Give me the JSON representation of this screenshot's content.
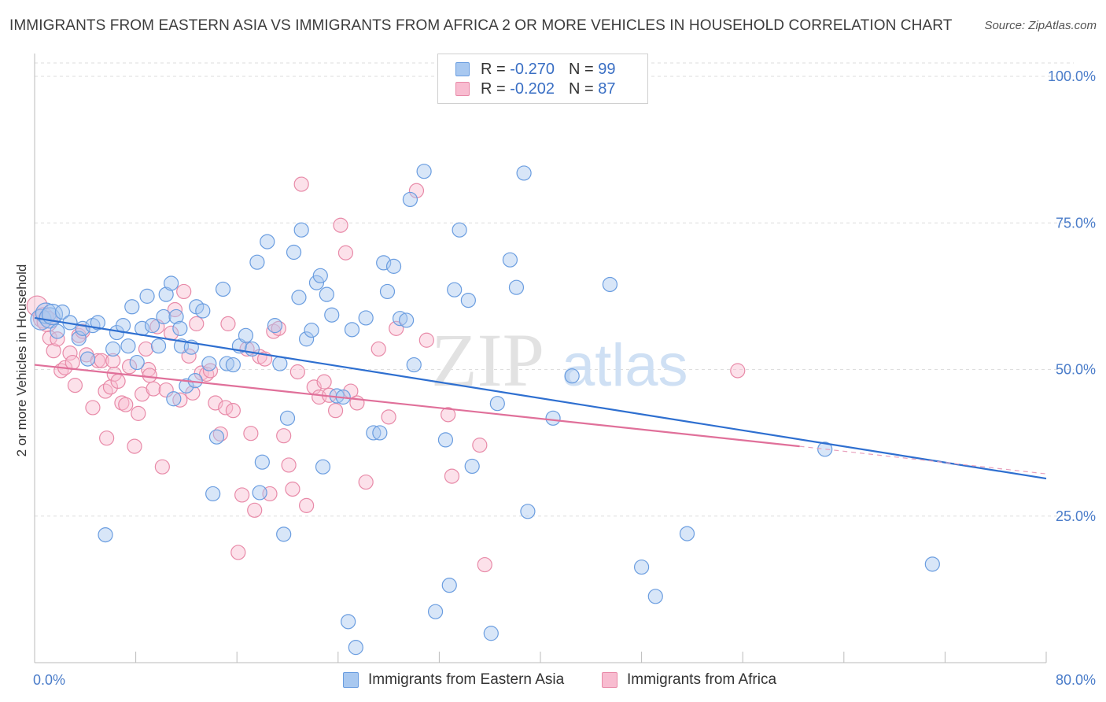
{
  "title": "IMMIGRANTS FROM EASTERN ASIA VS IMMIGRANTS FROM AFRICA 2 OR MORE VEHICLES IN HOUSEHOLD CORRELATION CHART",
  "source": "Source: ZipAtlas.com",
  "watermark": {
    "zip": "ZIP",
    "atlas": "atlas"
  },
  "legend": {
    "rows": [
      {
        "r_label": "R =",
        "r_value": "-0.270",
        "n_label": "N =",
        "n_value": "99",
        "color": "#a8c8f0",
        "border": "#6a9de0"
      },
      {
        "r_label": "R =",
        "r_value": "-0.202",
        "n_label": "N =",
        "n_value": "87",
        "color": "#f8bcd0",
        "border": "#e88aa8"
      }
    ]
  },
  "bottom_legend": [
    {
      "label": "Immigrants from Eastern Asia",
      "color": "#a8c8f0",
      "border": "#6a9de0"
    },
    {
      "label": "Immigrants from Africa",
      "color": "#f8bcd0",
      "border": "#e88aa8"
    }
  ],
  "chart_data": {
    "type": "scatter",
    "title": "IMMIGRANTS FROM EASTERN ASIA VS IMMIGRANTS FROM AFRICA 2 OR MORE VEHICLES IN HOUSEHOLD CORRELATION CHART",
    "xlabel": "",
    "ylabel": "2 or more Vehicles in Household",
    "xlim": [
      0,
      80
    ],
    "ylim": [
      0,
      102
    ],
    "x_tick_labels": [
      "0.0%",
      "80.0%"
    ],
    "y_ticks": [
      25,
      50,
      75,
      100
    ],
    "y_tick_labels": [
      "25.0%",
      "50.0%",
      "75.0%",
      "100.0%"
    ],
    "grid": true,
    "legend_position": "top-center",
    "series": [
      {
        "name": "Immigrants from Eastern Asia",
        "color": "#6a9de0",
        "fill": "#a8c8f0",
        "trend": {
          "x": [
            0,
            80
          ],
          "y": [
            58.8,
            31.4
          ]
        },
        "points": [
          [
            0.5,
            58.5
          ],
          [
            0.9,
            59.6
          ],
          [
            1.2,
            58.8
          ],
          [
            1.4,
            59.4
          ],
          [
            1.8,
            56.5
          ],
          [
            2.2,
            59.8
          ],
          [
            2.8,
            58.0
          ],
          [
            3.5,
            55.3
          ],
          [
            3.8,
            57.0
          ],
          [
            4.2,
            51.8
          ],
          [
            4.6,
            57.5
          ],
          [
            5.0,
            58.0
          ],
          [
            5.6,
            21.8
          ],
          [
            6.2,
            53.5
          ],
          [
            6.5,
            56.3
          ],
          [
            7.0,
            57.5
          ],
          [
            7.4,
            54.0
          ],
          [
            7.7,
            60.7
          ],
          [
            8.1,
            51.2
          ],
          [
            8.5,
            57.0
          ],
          [
            8.9,
            62.5
          ],
          [
            9.3,
            57.5
          ],
          [
            9.8,
            54.0
          ],
          [
            10.2,
            59.0
          ],
          [
            10.4,
            62.8
          ],
          [
            10.8,
            64.7
          ],
          [
            11.2,
            59.0
          ],
          [
            11.6,
            54.0
          ],
          [
            12.0,
            47.2
          ],
          [
            12.4,
            53.8
          ],
          [
            12.8,
            60.7
          ],
          [
            13.3,
            60.0
          ],
          [
            13.8,
            51.0
          ],
          [
            14.1,
            28.8
          ],
          [
            14.4,
            38.5
          ],
          [
            14.9,
            63.7
          ],
          [
            15.2,
            51.0
          ],
          [
            15.7,
            50.8
          ],
          [
            16.2,
            54.0
          ],
          [
            16.7,
            55.8
          ],
          [
            17.2,
            53.5
          ],
          [
            17.6,
            68.3
          ],
          [
            17.8,
            29.0
          ],
          [
            18.0,
            34.2
          ],
          [
            18.4,
            71.8
          ],
          [
            19.0,
            57.5
          ],
          [
            19.4,
            51.0
          ],
          [
            19.7,
            21.9
          ],
          [
            20.0,
            41.7
          ],
          [
            20.5,
            70.0
          ],
          [
            20.9,
            62.3
          ],
          [
            21.1,
            73.8
          ],
          [
            21.5,
            55.2
          ],
          [
            21.9,
            56.7
          ],
          [
            22.3,
            64.8
          ],
          [
            22.6,
            66.0
          ],
          [
            22.8,
            33.4
          ],
          [
            23.1,
            62.8
          ],
          [
            23.5,
            59.3
          ],
          [
            23.9,
            45.5
          ],
          [
            24.4,
            45.3
          ],
          [
            24.8,
            7.0
          ],
          [
            25.1,
            56.8
          ],
          [
            25.4,
            2.6
          ],
          [
            26.2,
            58.8
          ],
          [
            26.8,
            39.2
          ],
          [
            27.3,
            39.2
          ],
          [
            27.6,
            68.2
          ],
          [
            27.9,
            63.3
          ],
          [
            28.4,
            67.6
          ],
          [
            28.9,
            58.7
          ],
          [
            29.4,
            58.4
          ],
          [
            29.7,
            79.0
          ],
          [
            30.0,
            50.8
          ],
          [
            30.8,
            83.8
          ],
          [
            31.7,
            8.7
          ],
          [
            32.5,
            38.0
          ],
          [
            32.8,
            13.2
          ],
          [
            33.2,
            63.6
          ],
          [
            33.6,
            73.8
          ],
          [
            34.3,
            61.8
          ],
          [
            34.6,
            33.5
          ],
          [
            36.1,
            5.0
          ],
          [
            36.6,
            44.2
          ],
          [
            37.6,
            68.7
          ],
          [
            38.1,
            64.0
          ],
          [
            38.7,
            83.5
          ],
          [
            39.0,
            25.8
          ],
          [
            41.0,
            41.7
          ],
          [
            42.5,
            48.9
          ],
          [
            45.5,
            64.5
          ],
          [
            48.0,
            16.3
          ],
          [
            49.1,
            11.3
          ],
          [
            51.6,
            22.0
          ],
          [
            62.5,
            36.4
          ],
          [
            71.0,
            16.8
          ],
          [
            11.0,
            45.0
          ],
          [
            12.7,
            48.1
          ],
          [
            11.5,
            57.0
          ]
        ]
      },
      {
        "name": "Immigrants from Africa",
        "color": "#e88aa8",
        "fill": "#f8bcd0",
        "trend": {
          "x": [
            0,
            60.5
          ],
          "y": [
            50.8,
            36.9
          ],
          "dashed_to": [
            80,
            32.2
          ]
        },
        "points": [
          [
            0.2,
            60.8
          ],
          [
            0.7,
            58.8
          ],
          [
            1.2,
            55.4
          ],
          [
            1.5,
            53.2
          ],
          [
            1.8,
            55.2
          ],
          [
            2.1,
            49.8
          ],
          [
            2.4,
            50.3
          ],
          [
            2.8,
            52.8
          ],
          [
            3.2,
            47.3
          ],
          [
            3.5,
            55.8
          ],
          [
            3.8,
            56.5
          ],
          [
            4.1,
            52.5
          ],
          [
            4.6,
            43.5
          ],
          [
            5.0,
            51.5
          ],
          [
            5.3,
            51.5
          ],
          [
            5.6,
            46.3
          ],
          [
            5.7,
            38.3
          ],
          [
            6.0,
            47.0
          ],
          [
            6.3,
            49.2
          ],
          [
            6.6,
            48.0
          ],
          [
            6.9,
            44.3
          ],
          [
            7.2,
            44.0
          ],
          [
            7.5,
            50.5
          ],
          [
            7.9,
            36.9
          ],
          [
            8.2,
            42.5
          ],
          [
            8.5,
            45.8
          ],
          [
            8.8,
            53.5
          ],
          [
            9.0,
            50.0
          ],
          [
            9.4,
            46.7
          ],
          [
            9.7,
            57.3
          ],
          [
            10.1,
            33.4
          ],
          [
            10.4,
            46.5
          ],
          [
            10.8,
            56.2
          ],
          [
            11.1,
            60.2
          ],
          [
            11.5,
            44.8
          ],
          [
            11.8,
            63.3
          ],
          [
            12.2,
            52.3
          ],
          [
            12.5,
            46.0
          ],
          [
            12.8,
            57.8
          ],
          [
            13.2,
            49.4
          ],
          [
            13.6,
            49.2
          ],
          [
            13.9,
            49.8
          ],
          [
            14.3,
            44.3
          ],
          [
            14.7,
            39.0
          ],
          [
            15.1,
            43.5
          ],
          [
            15.3,
            57.8
          ],
          [
            15.7,
            43.0
          ],
          [
            16.1,
            18.8
          ],
          [
            16.4,
            28.6
          ],
          [
            16.8,
            53.5
          ],
          [
            17.1,
            39.1
          ],
          [
            17.4,
            26.0
          ],
          [
            17.8,
            52.2
          ],
          [
            18.2,
            51.8
          ],
          [
            18.6,
            28.8
          ],
          [
            18.9,
            56.5
          ],
          [
            19.3,
            57.0
          ],
          [
            19.7,
            38.7
          ],
          [
            20.1,
            33.7
          ],
          [
            20.4,
            29.6
          ],
          [
            20.8,
            49.6
          ],
          [
            21.1,
            81.6
          ],
          [
            21.5,
            26.8
          ],
          [
            22.1,
            47.0
          ],
          [
            22.5,
            45.3
          ],
          [
            22.9,
            47.9
          ],
          [
            23.3,
            45.6
          ],
          [
            23.8,
            43.0
          ],
          [
            24.2,
            74.6
          ],
          [
            24.6,
            69.9
          ],
          [
            25.0,
            46.3
          ],
          [
            25.5,
            44.3
          ],
          [
            26.2,
            30.8
          ],
          [
            27.2,
            53.5
          ],
          [
            28.0,
            41.9
          ],
          [
            28.6,
            57.0
          ],
          [
            30.2,
            80.5
          ],
          [
            31.0,
            55.0
          ],
          [
            32.7,
            42.3
          ],
          [
            33.0,
            31.8
          ],
          [
            35.2,
            37.1
          ],
          [
            35.6,
            16.7
          ],
          [
            55.6,
            49.8
          ],
          [
            1.0,
            58.2
          ],
          [
            3.0,
            51.2
          ],
          [
            6.2,
            51.5
          ],
          [
            9.1,
            49.0
          ]
        ]
      }
    ]
  }
}
